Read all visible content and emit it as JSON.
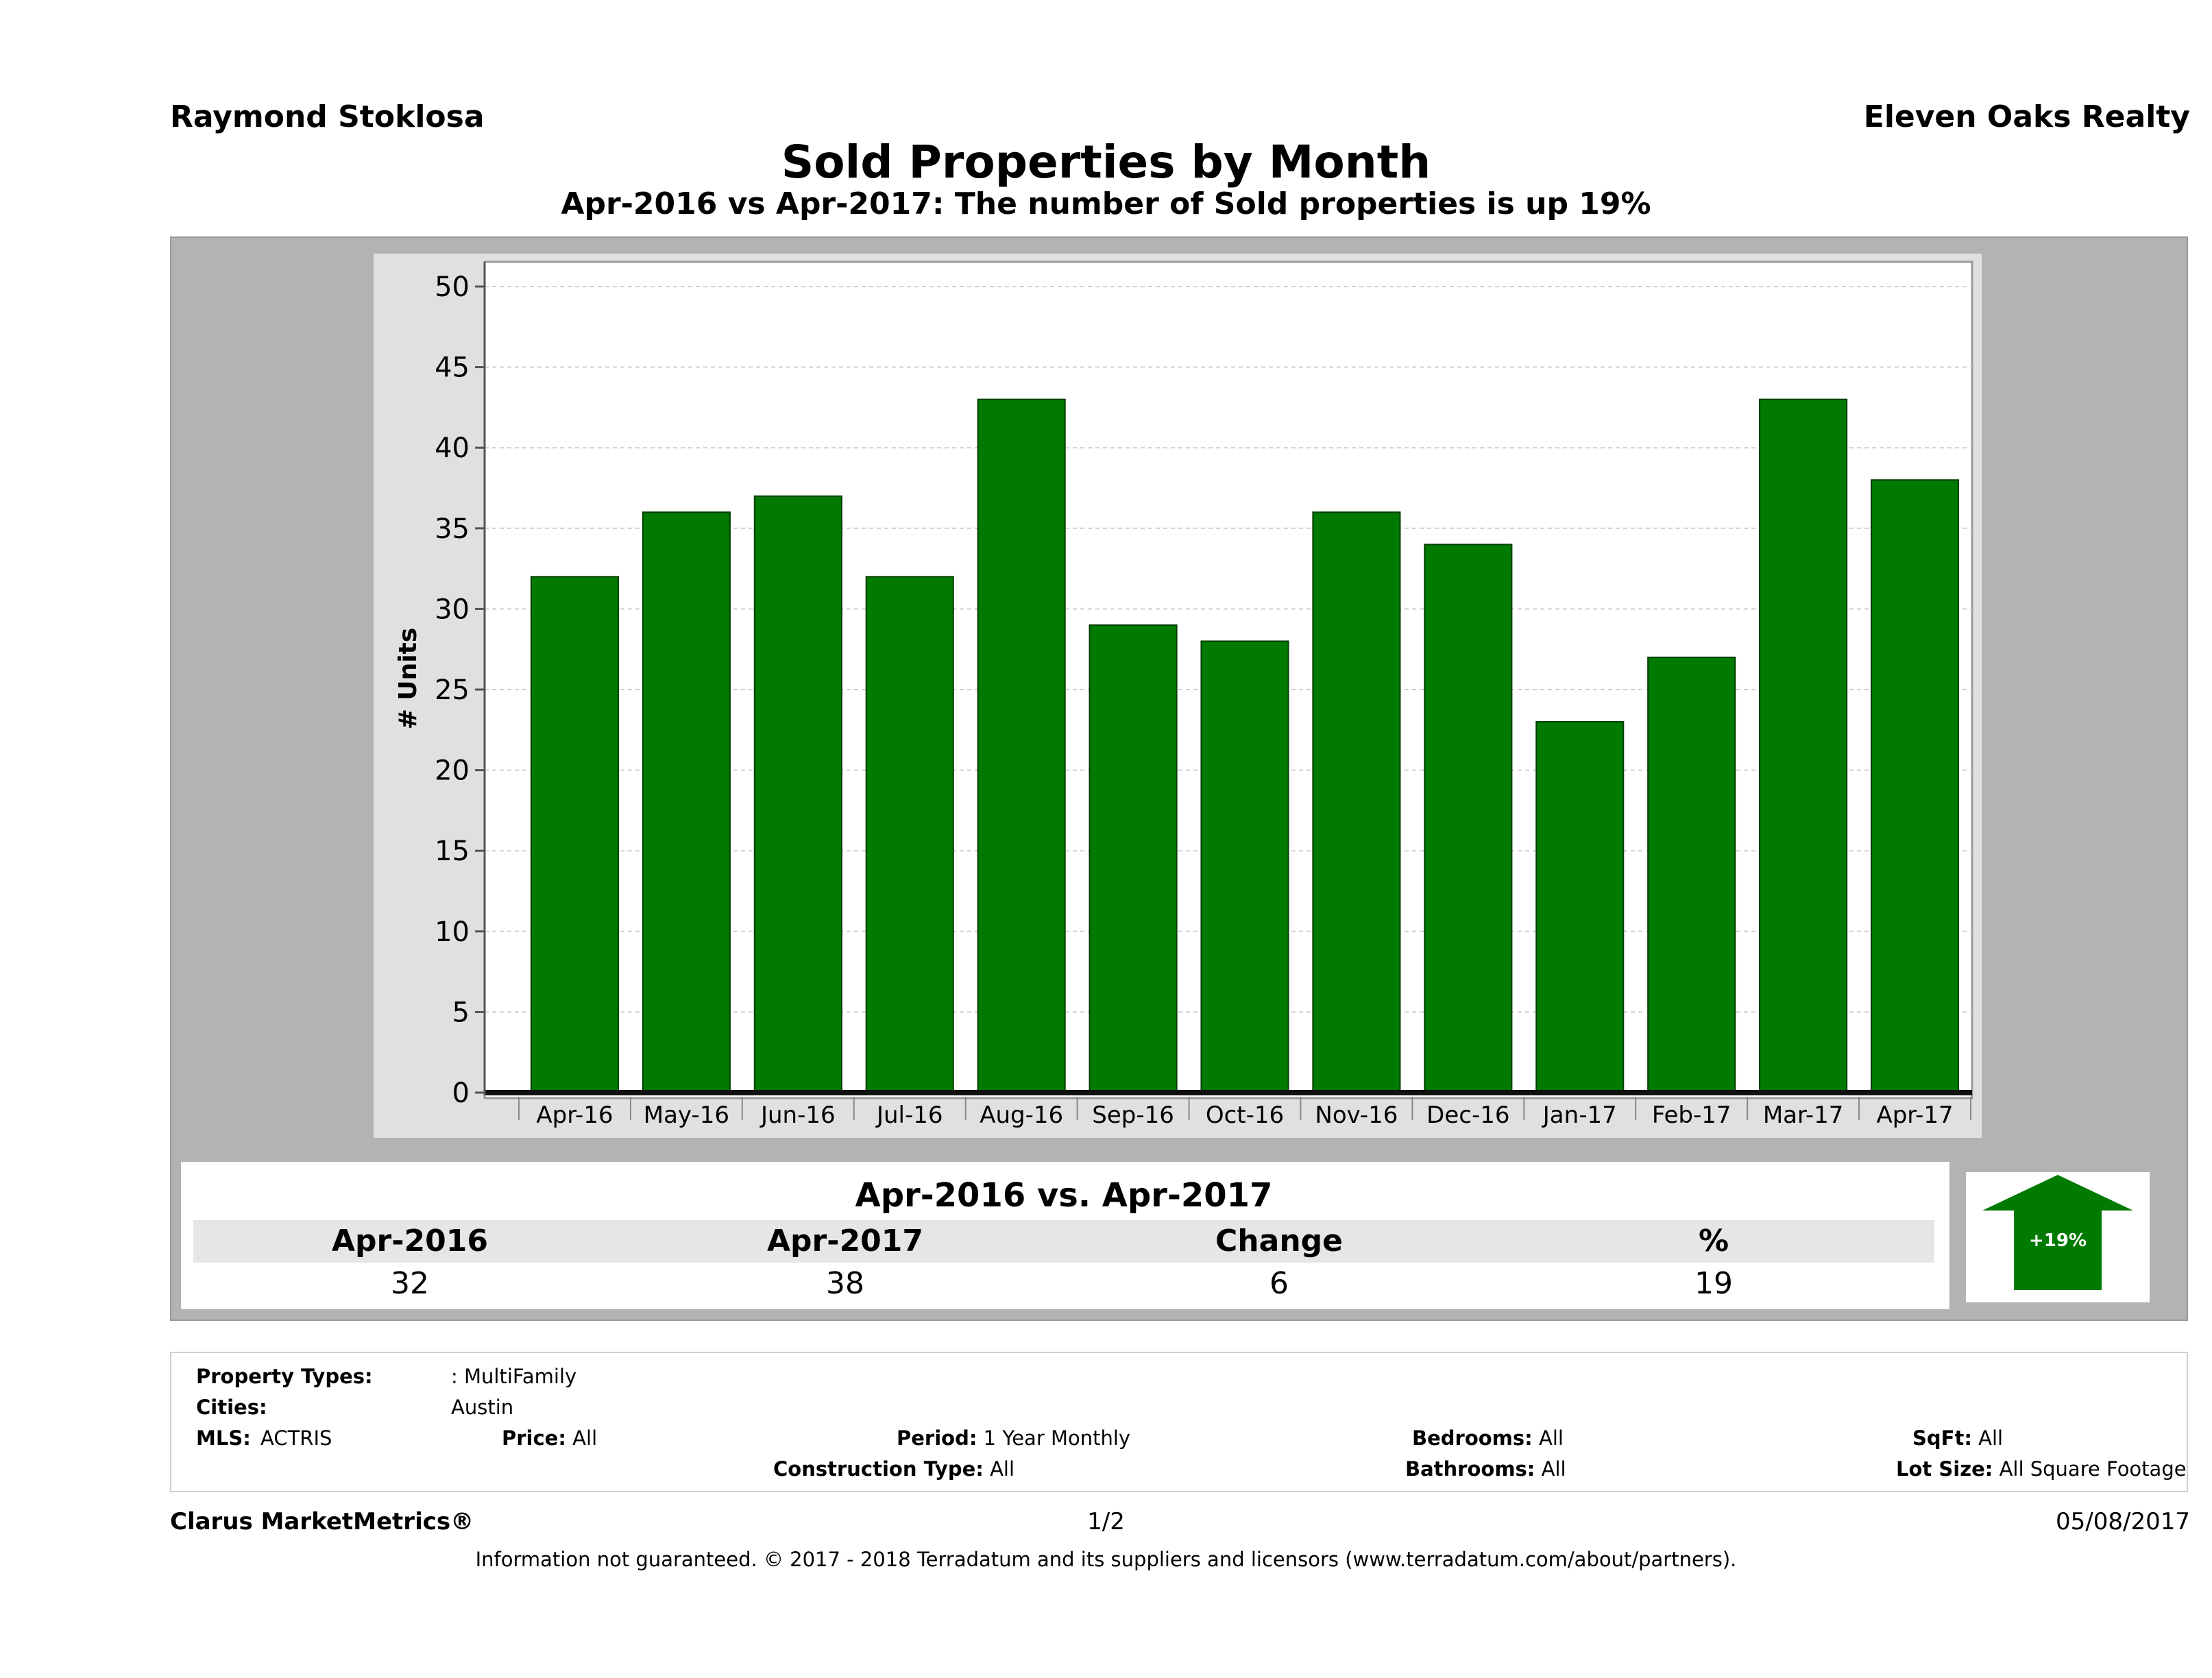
{
  "header": {
    "agent": "Raymond Stoklosa",
    "office": "Eleven Oaks Realty",
    "title": "Sold Properties by Month",
    "subtitle": "Apr-2016 vs Apr-2017: The number of Sold  properties is up 19%"
  },
  "chart_data": {
    "type": "bar",
    "categories": [
      "Apr-16",
      "May-16",
      "Jun-16",
      "Jul-16",
      "Aug-16",
      "Sep-16",
      "Oct-16",
      "Nov-16",
      "Dec-16",
      "Jan-17",
      "Feb-17",
      "Mar-17",
      "Apr-17"
    ],
    "values": [
      32,
      36,
      37,
      32,
      43,
      29,
      28,
      36,
      34,
      23,
      27,
      43,
      38
    ],
    "ylabel": "# Units",
    "ylim": [
      0,
      50
    ],
    "yticks": [
      0,
      5,
      10,
      15,
      20,
      25,
      30,
      35,
      40,
      45,
      50
    ],
    "bar_color": "#007a00",
    "grid": true
  },
  "summary": {
    "title": "Apr-2016 vs. Apr-2017",
    "headers": [
      "Apr-2016",
      "Apr-2017",
      "Change",
      "%"
    ],
    "values": [
      "32",
      "38",
      "6",
      "19"
    ],
    "badge": "+19%",
    "badge_color": "#007a00"
  },
  "filters": {
    "property_types_label": "Property Types:",
    "property_types_value": ": MultiFamily",
    "cities_label": "Cities:",
    "cities_value": "Austin",
    "mls_label": "MLS:",
    "mls_value": "ACTRIS",
    "price_label": "Price:",
    "price_value": "All",
    "period_label": "Period:",
    "period_value": "1 Year Monthly",
    "construction_label": "Construction Type:",
    "construction_value": "All",
    "bedrooms_label": "Bedrooms:",
    "bedrooms_value": "All",
    "bathrooms_label": "Bathrooms:",
    "bathrooms_value": "All",
    "sqft_label": "SqFt:",
    "sqft_value": "All",
    "lotsize_label": "Lot Size:",
    "lotsize_value": "All Square Footage"
  },
  "footer": {
    "brand": "Clarus MarketMetrics®",
    "page": "1/2",
    "date": "05/08/2017",
    "disclaimer": "Information not guaranteed. © 2017 - 2018 Terradatum and its suppliers and licensors (www.terradatum.com/about/partners)."
  }
}
